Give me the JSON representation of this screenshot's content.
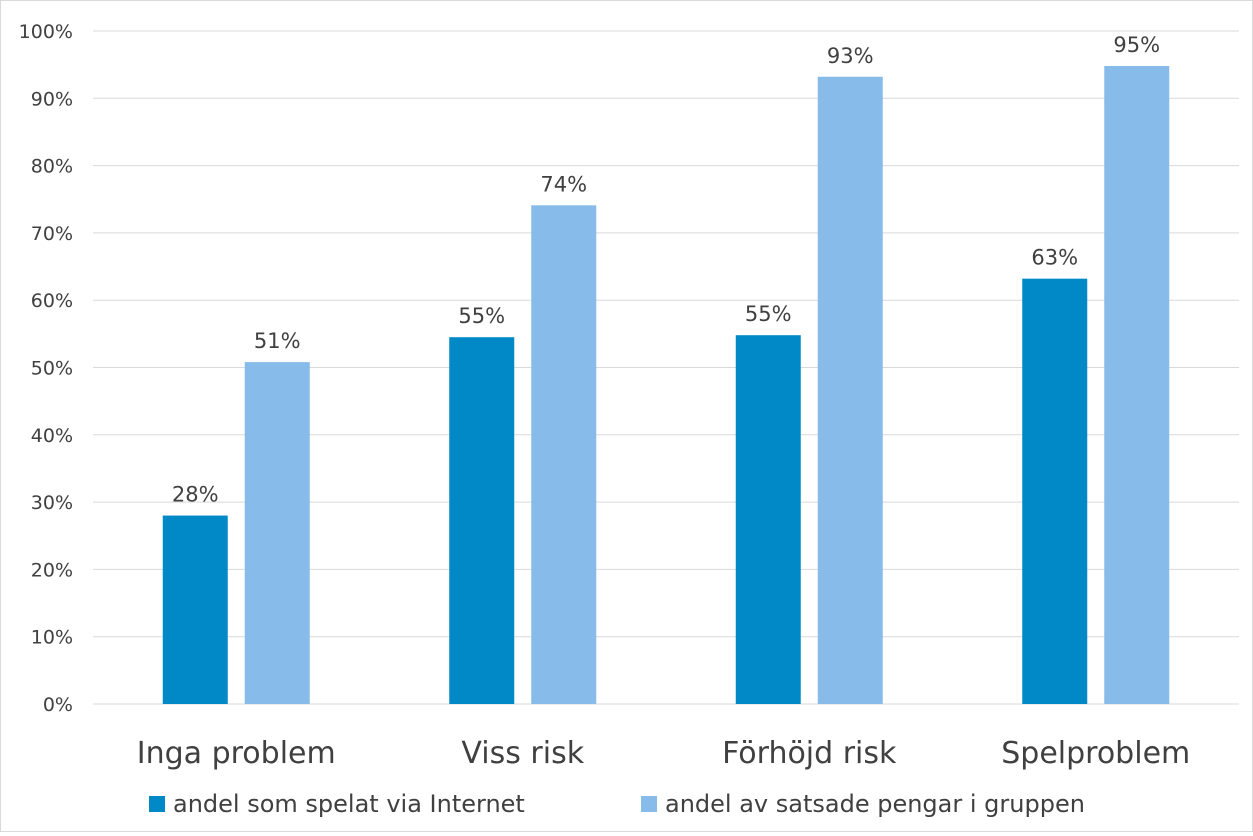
{
  "chart_data": {
    "type": "bar",
    "categories": [
      "Inga problem",
      "Viss risk",
      "Förhöjd risk",
      "Spelproblem"
    ],
    "series": [
      {
        "name": "andel som spelat via Internet",
        "color": "#0089c6",
        "values": [
          28,
          54.5,
          54.8,
          63.2
        ],
        "labels": [
          "28%",
          "55%",
          "55%",
          "63%"
        ]
      },
      {
        "name": "andel av satsade pengar i gruppen",
        "color": "#86bbea",
        "values": [
          50.8,
          74.1,
          93.2,
          94.8
        ],
        "labels": [
          "51%",
          "74%",
          "93%",
          "95%"
        ]
      }
    ],
    "ylim": [
      0,
      100
    ],
    "yticks": [
      0,
      10,
      20,
      30,
      40,
      50,
      60,
      70,
      80,
      90,
      100
    ],
    "ytick_labels": [
      "0%",
      "10%",
      "20%",
      "30%",
      "40%",
      "50%",
      "60%",
      "70%",
      "80%",
      "90%",
      "100%"
    ],
    "grid": true,
    "grid_color": "#d9d9d9",
    "legend_position": "bottom",
    "title": "",
    "xlabel": "",
    "ylabel": ""
  }
}
